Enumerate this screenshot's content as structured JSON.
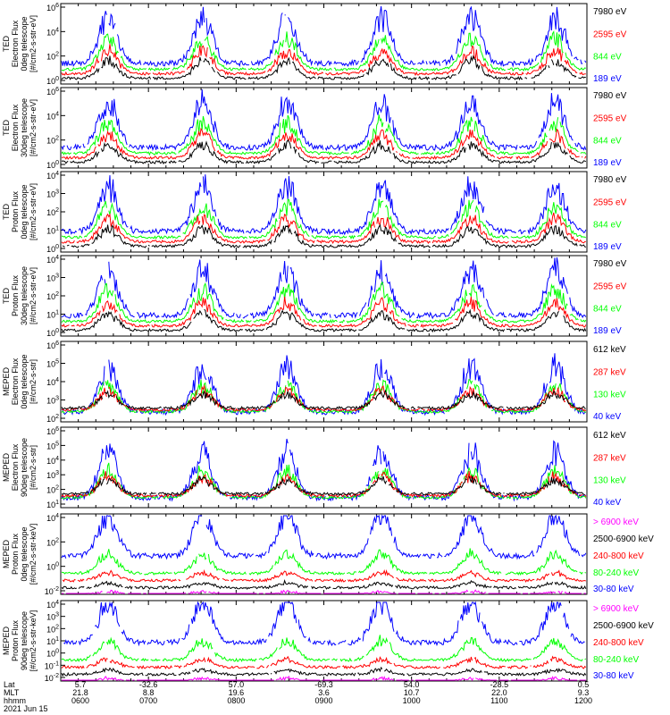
{
  "colors": {
    "blue": "#0000ff",
    "red": "#ff0000",
    "green": "#00ff00",
    "black": "#000000",
    "magenta": "#ff00ff"
  },
  "chart_data": [
    {
      "type": "line",
      "ylabel_lines": [
        "TED",
        "Electron Flux",
        "0deg telescope",
        "[#/cm2-s-str-eV]"
      ],
      "ytick_labels": [
        "10^6",
        "10^4",
        "10^2",
        "10^0"
      ],
      "legend": [
        {
          "label": "7980 eV",
          "color": "black"
        },
        {
          "label": "2595 eV",
          "color": "red"
        },
        {
          "label": "844 eV",
          "color": "green"
        },
        {
          "label": "189 eV",
          "color": "blue"
        }
      ]
    },
    {
      "type": "line",
      "ylabel_lines": [
        "TED",
        "Electron Flux",
        "30deg telescope",
        "[#/cm2-s-str-eV]"
      ],
      "ytick_labels": [
        "10^6",
        "10^4",
        "10^2",
        "10^0"
      ],
      "legend": [
        {
          "label": "7980 eV",
          "color": "black"
        },
        {
          "label": "2595 eV",
          "color": "red"
        },
        {
          "label": "844 eV",
          "color": "green"
        },
        {
          "label": "189 eV",
          "color": "blue"
        }
      ]
    },
    {
      "type": "line",
      "ylabel_lines": [
        "TED",
        "Proton Flux",
        "0deg telescope",
        "[#/cm2-s-str-eV]"
      ],
      "ytick_labels": [
        "10^4",
        "10^3",
        "10^2",
        "10^1",
        "10^0"
      ],
      "legend": [
        {
          "label": "7980 eV",
          "color": "black"
        },
        {
          "label": "2595 eV",
          "color": "red"
        },
        {
          "label": "844 eV",
          "color": "green"
        },
        {
          "label": "189 eV",
          "color": "blue"
        }
      ]
    },
    {
      "type": "line",
      "ylabel_lines": [
        "TED",
        "Proton Flux",
        "30deg telescope",
        "[#/cm2-s-str-eV]"
      ],
      "ytick_labels": [
        "10^4",
        "10^3",
        "10^2",
        "10^1",
        "10^0"
      ],
      "legend": [
        {
          "label": "7980 eV",
          "color": "black"
        },
        {
          "label": "2595 eV",
          "color": "red"
        },
        {
          "label": "844 eV",
          "color": "green"
        },
        {
          "label": "189 eV",
          "color": "blue"
        }
      ]
    },
    {
      "type": "line",
      "ylabel_lines": [
        "MEPED",
        "Electron Flux",
        "0deg telescope",
        "[#/cm2-s-str]"
      ],
      "ytick_labels": [
        "10^6",
        "10^5",
        "10^4",
        "10^3",
        "10^2"
      ],
      "legend": [
        {
          "label": "612 keV",
          "color": "black"
        },
        {
          "label": "287 keV",
          "color": "red"
        },
        {
          "label": "130 keV",
          "color": "green"
        },
        {
          "label": "40 keV",
          "color": "blue"
        }
      ]
    },
    {
      "type": "line",
      "ylabel_lines": [
        "MEPED",
        "Electron Flux",
        "90deg telescope",
        "[#/cm2-s-str]"
      ],
      "ytick_labels": [
        "10^6",
        "10^5",
        "10^4",
        "10^3",
        "10^2",
        "10^1"
      ],
      "legend": [
        {
          "label": "612 keV",
          "color": "black"
        },
        {
          "label": "287 keV",
          "color": "red"
        },
        {
          "label": "130 keV",
          "color": "green"
        },
        {
          "label": "40 keV",
          "color": "blue"
        }
      ]
    },
    {
      "type": "line",
      "ylabel_lines": [
        "MEPED",
        "Proton Flux",
        "0deg telescope",
        "[#/cm2-s-str-keV]"
      ],
      "ytick_labels": [
        "10^4",
        "10^2",
        "10^0",
        "10^-2"
      ],
      "legend": [
        {
          "label": "> 6900 keV",
          "color": "magenta"
        },
        {
          "label": "2500-6900 keV",
          "color": "black"
        },
        {
          "label": "240-800 keV",
          "color": "red"
        },
        {
          "label": "80-240 keV",
          "color": "green"
        },
        {
          "label": "30-80 keV",
          "color": "blue"
        }
      ]
    },
    {
      "type": "line",
      "ylabel_lines": [
        "MEPED",
        "Proton Flux",
        "90deg telescope",
        "[#/cm2-s-str-keV]"
      ],
      "ytick_labels": [
        "10^4",
        "10^3",
        "10^2",
        "10^1",
        "10^0",
        "10^-1",
        "10^-2"
      ],
      "legend": [
        {
          "label": "> 6900 keV",
          "color": "magenta"
        },
        {
          "label": "2500-6900 keV",
          "color": "black"
        },
        {
          "label": "240-800 keV",
          "color": "red"
        },
        {
          "label": "80-240 keV",
          "color": "green"
        },
        {
          "label": "30-80 keV",
          "color": "blue"
        }
      ]
    }
  ],
  "x_axis": {
    "row_labels": [
      "Lat",
      "MLT",
      "hhmm",
      "2021 Jun 15"
    ],
    "ticks": [
      {
        "lat": "5.7",
        "mlt": "21.8",
        "hhmm": "0600"
      },
      {
        "lat": "-32.6",
        "mlt": "8.8",
        "hhmm": "0700"
      },
      {
        "lat": "57.0",
        "mlt": "19.6",
        "hhmm": "0800"
      },
      {
        "lat": "-69.3",
        "mlt": "3.6",
        "hhmm": "0900"
      },
      {
        "lat": "54.0",
        "mlt": "10.7",
        "hhmm": "1000"
      },
      {
        "lat": "-28.5",
        "mlt": "22.0",
        "hhmm": "1100"
      },
      {
        "lat": "0.5",
        "mlt": "9.3",
        "hhmm": "1200"
      }
    ]
  }
}
